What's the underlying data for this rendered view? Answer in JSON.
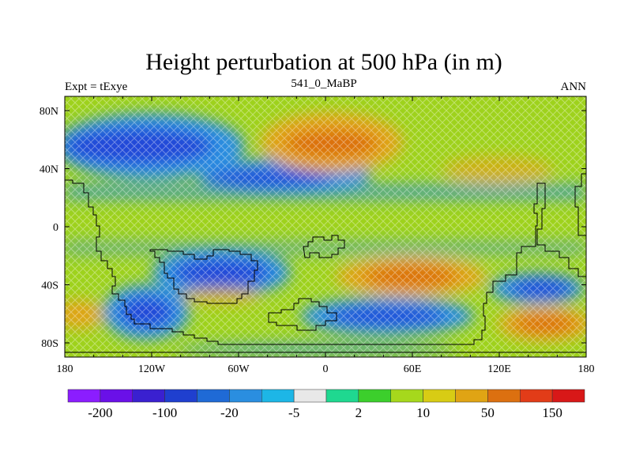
{
  "title": "Height perturbation at 500 hPa (in m)",
  "left_string": "Expt = tExye",
  "center_string": "541_0_MaBP",
  "right_string": "ANN",
  "y_tick_labels": [
    "80N",
    "40N",
    "0",
    "40S",
    "80S"
  ],
  "x_tick_labels": [
    "180",
    "120W",
    "60W",
    "0",
    "60E",
    "120E",
    "180"
  ],
  "colorbar": {
    "labels": [
      "-200",
      "-100",
      "-20",
      "-5",
      "2",
      "10",
      "50",
      "150"
    ],
    "colors": [
      "#8b1dff",
      "#6a10e8",
      "#3a20d0",
      "#1f3fcf",
      "#1f6ad6",
      "#2a8ee0",
      "#1db6e6",
      "#e8e8e8",
      "#1fd890",
      "#3ccf2c",
      "#a6d81c",
      "#d8cc14",
      "#e0a414",
      "#dc7010",
      "#e23c18",
      "#d81818"
    ]
  },
  "colors": {
    "background_field": "#9ed21c",
    "strong_negative": "#2448d8",
    "negative": "#2a8ee0",
    "positive": "#e0a414",
    "strong_positive": "#dc7010",
    "coastline": "#000000"
  }
}
